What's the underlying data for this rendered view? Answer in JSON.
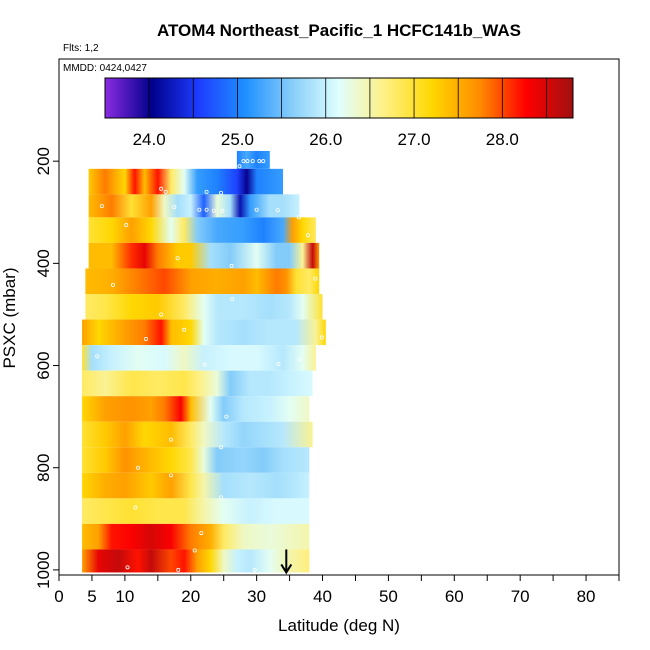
{
  "chart_data": {
    "type": "heatmap",
    "title": "ATOM4 Northeast_Pacific_1 HCFC141b_WAS",
    "flights_label": "Flts: 1,2",
    "dates_label": "MMDD: 0424,0427",
    "xlabel": "Latitude (deg N)",
    "ylabel": "PSXC (mbar)",
    "xlim": [
      0,
      85
    ],
    "ylim": [
      1010,
      0
    ],
    "x_ticks": [
      0,
      10,
      20,
      30,
      40,
      50,
      60,
      70,
      80
    ],
    "x_tick_labels": [
      "0",
      "10",
      "20",
      "30",
      "40",
      "50",
      "60",
      "70",
      "80"
    ],
    "x_extra_tick": {
      "value": 5,
      "label": "5"
    },
    "y_ticks": [
      200,
      400,
      600,
      800,
      1000
    ],
    "y_tick_labels": [
      "200",
      "400",
      "600",
      "800",
      "1000"
    ],
    "colorbar": {
      "min": 23.5,
      "max": 28.8,
      "ticks": [
        24.0,
        25.0,
        26.0,
        27.0,
        28.0
      ],
      "tick_labels": [
        "24.0",
        "25.0",
        "26.0",
        "27.0",
        "28.0"
      ],
      "colors": [
        "#8a2be2",
        "#00008b",
        "#1e3cff",
        "#1e90ff",
        "#87cefa",
        "#e0ffff",
        "#fff080",
        "#ffd700",
        "#ff8c00",
        "#ff0000",
        "#a01010"
      ]
    },
    "bands": [
      {
        "p_top": 180,
        "p_bot": 215,
        "lat_start": 27,
        "lat_end": 32,
        "stops": [
          [
            27,
            25.0
          ],
          [
            28.5,
            25.3
          ],
          [
            30,
            25.0
          ],
          [
            32,
            25.2
          ]
        ]
      },
      {
        "p_top": 215,
        "p_bot": 265,
        "lat_start": 4.5,
        "lat_end": 34,
        "stops": [
          [
            4.5,
            27.3
          ],
          [
            7,
            27.8
          ],
          [
            10,
            27.2
          ],
          [
            11.5,
            28.2
          ],
          [
            13,
            27.4
          ],
          [
            15,
            28.2
          ],
          [
            17,
            26.8
          ],
          [
            19,
            26.2
          ],
          [
            21,
            25.2
          ],
          [
            24,
            25.0
          ],
          [
            27,
            24.6
          ],
          [
            28.5,
            24.0
          ],
          [
            30,
            25.0
          ],
          [
            34,
            25.2
          ]
        ]
      },
      {
        "p_top": 265,
        "p_bot": 310,
        "lat_start": 4.5,
        "lat_end": 36.5,
        "stops": [
          [
            4.5,
            27.4
          ],
          [
            8,
            27.8
          ],
          [
            11,
            27.0
          ],
          [
            14,
            27.6
          ],
          [
            16,
            26.4
          ],
          [
            18,
            25.8
          ],
          [
            20,
            26.0
          ],
          [
            22,
            24.8
          ],
          [
            24,
            26.3
          ],
          [
            26,
            25.8
          ],
          [
            27.5,
            24.2
          ],
          [
            29,
            25.2
          ],
          [
            32,
            25.8
          ],
          [
            34,
            25.8
          ],
          [
            36.5,
            26.0
          ]
        ]
      },
      {
        "p_top": 310,
        "p_bot": 360,
        "lat_start": 4.5,
        "lat_end": 39,
        "stops": [
          [
            4.5,
            27.0
          ],
          [
            8,
            27.2
          ],
          [
            11,
            27.6
          ],
          [
            14,
            27.2
          ],
          [
            17,
            26.2
          ],
          [
            19,
            26.8
          ],
          [
            21,
            25.6
          ],
          [
            24,
            25.3
          ],
          [
            28,
            25.2
          ],
          [
            31,
            25.0
          ],
          [
            34,
            25.3
          ],
          [
            35.5,
            27.6
          ],
          [
            37,
            27.2
          ],
          [
            39,
            26.8
          ]
        ]
      },
      {
        "p_top": 360,
        "p_bot": 410,
        "lat_start": 4.5,
        "lat_end": 39.5,
        "stops": [
          [
            4.5,
            27.4
          ],
          [
            8,
            27.4
          ],
          [
            11,
            28.1
          ],
          [
            13,
            28.4
          ],
          [
            15,
            27.8
          ],
          [
            18,
            27.3
          ],
          [
            20,
            27.3
          ],
          [
            23,
            25.8
          ],
          [
            26,
            25.6
          ],
          [
            30,
            26.2
          ],
          [
            33,
            25.6
          ],
          [
            35,
            25.6
          ],
          [
            37,
            26.6
          ],
          [
            38.5,
            28.6
          ],
          [
            39.5,
            27.6
          ]
        ]
      },
      {
        "p_top": 410,
        "p_bot": 460,
        "lat_start": 4,
        "lat_end": 39.5,
        "stops": [
          [
            4,
            27.4
          ],
          [
            8,
            27.5
          ],
          [
            12,
            27.8
          ],
          [
            16,
            28.0
          ],
          [
            20,
            27.6
          ],
          [
            24,
            27.5
          ],
          [
            28,
            27.6
          ],
          [
            30,
            27.4
          ],
          [
            33,
            27.8
          ],
          [
            34.5,
            27.7
          ],
          [
            36,
            27.0
          ],
          [
            38,
            26.8
          ],
          [
            39.5,
            27.2
          ]
        ]
      },
      {
        "p_top": 460,
        "p_bot": 510,
        "lat_start": 4,
        "lat_end": 40,
        "stops": [
          [
            4,
            26.8
          ],
          [
            7,
            26.9
          ],
          [
            11,
            27.2
          ],
          [
            15,
            27.3
          ],
          [
            19,
            26.8
          ],
          [
            22,
            26.2
          ],
          [
            24,
            25.9
          ],
          [
            28,
            25.9
          ],
          [
            32,
            25.8
          ],
          [
            35,
            25.9
          ],
          [
            37,
            26.2
          ],
          [
            40,
            27.0
          ]
        ]
      },
      {
        "p_top": 510,
        "p_bot": 560,
        "lat_start": 3.5,
        "lat_end": 40.5,
        "stops": [
          [
            3.5,
            27.6
          ],
          [
            6,
            27.2
          ],
          [
            10,
            27.6
          ],
          [
            13,
            27.8
          ],
          [
            15.5,
            28.2
          ],
          [
            17,
            27.4
          ],
          [
            20,
            27.2
          ],
          [
            22,
            26.2
          ],
          [
            24,
            25.9
          ],
          [
            28,
            25.8
          ],
          [
            32,
            25.9
          ],
          [
            36,
            25.9
          ],
          [
            39,
            26.6
          ],
          [
            40.5,
            27.2
          ]
        ]
      },
      {
        "p_top": 560,
        "p_bot": 610,
        "lat_start": 3.5,
        "lat_end": 39,
        "stops": [
          [
            3.5,
            27.0
          ],
          [
            5,
            25.8
          ],
          [
            8,
            26.0
          ],
          [
            12,
            26.2
          ],
          [
            16,
            26.1
          ],
          [
            19,
            26.4
          ],
          [
            22,
            26.0
          ],
          [
            26,
            26.1
          ],
          [
            30,
            26.1
          ],
          [
            34,
            25.9
          ],
          [
            37,
            26.2
          ],
          [
            39,
            26.6
          ]
        ]
      },
      {
        "p_top": 610,
        "p_bot": 660,
        "lat_start": 3.5,
        "lat_end": 38.5,
        "stops": [
          [
            3.5,
            26.8
          ],
          [
            7,
            26.6
          ],
          [
            11,
            26.9
          ],
          [
            15,
            26.8
          ],
          [
            19,
            26.9
          ],
          [
            21,
            26.7
          ],
          [
            24,
            26.3
          ],
          [
            26,
            25.6
          ],
          [
            29,
            25.9
          ],
          [
            32,
            25.9
          ],
          [
            35,
            26.0
          ],
          [
            38.5,
            26.1
          ]
        ]
      },
      {
        "p_top": 660,
        "p_bot": 710,
        "lat_start": 3.5,
        "lat_end": 38,
        "stops": [
          [
            3.5,
            27.2
          ],
          [
            7,
            27.6
          ],
          [
            11,
            27.7
          ],
          [
            14,
            27.6
          ],
          [
            16,
            27.8
          ],
          [
            18.5,
            28.3
          ],
          [
            20,
            27.4
          ],
          [
            23,
            26.2
          ],
          [
            25,
            25.6
          ],
          [
            28,
            25.9
          ],
          [
            32,
            26.0
          ],
          [
            35,
            26.2
          ],
          [
            38,
            26.4
          ]
        ]
      },
      {
        "p_top": 710,
        "p_bot": 760,
        "lat_start": 3.5,
        "lat_end": 38.5,
        "stops": [
          [
            3.5,
            27.0
          ],
          [
            7,
            27.3
          ],
          [
            10,
            27.6
          ],
          [
            13,
            27.2
          ],
          [
            17,
            27.4
          ],
          [
            20,
            26.8
          ],
          [
            22,
            26.4
          ],
          [
            25,
            25.9
          ],
          [
            28,
            25.7
          ],
          [
            31,
            25.8
          ],
          [
            34,
            25.9
          ],
          [
            38.5,
            26.6
          ]
        ]
      },
      {
        "p_top": 760,
        "p_bot": 810,
        "lat_start": 3.5,
        "lat_end": 38,
        "stops": [
          [
            3.5,
            27.0
          ],
          [
            7,
            27.3
          ],
          [
            10,
            27.7
          ],
          [
            14,
            27.4
          ],
          [
            17,
            27.2
          ],
          [
            20,
            26.9
          ],
          [
            22,
            26.3
          ],
          [
            24,
            25.6
          ],
          [
            28,
            25.7
          ],
          [
            31,
            25.6
          ],
          [
            34,
            25.8
          ],
          [
            38,
            25.9
          ]
        ]
      },
      {
        "p_top": 810,
        "p_bot": 860,
        "lat_start": 3.5,
        "lat_end": 38,
        "stops": [
          [
            3.5,
            27.2
          ],
          [
            7,
            27.5
          ],
          [
            10,
            27.6
          ],
          [
            14,
            27.3
          ],
          [
            17,
            27.6
          ],
          [
            20,
            26.9
          ],
          [
            22,
            26.5
          ],
          [
            25,
            25.8
          ],
          [
            29,
            25.9
          ],
          [
            33,
            25.8
          ],
          [
            36,
            25.9
          ],
          [
            38,
            26.0
          ]
        ]
      },
      {
        "p_top": 860,
        "p_bot": 910,
        "lat_start": 3.5,
        "lat_end": 38,
        "stops": [
          [
            3.5,
            26.8
          ],
          [
            7,
            26.9
          ],
          [
            11,
            27.0
          ],
          [
            15,
            26.9
          ],
          [
            19,
            26.9
          ],
          [
            22,
            26.5
          ],
          [
            25,
            26.2
          ],
          [
            29,
            26.0
          ],
          [
            33,
            26.1
          ],
          [
            38,
            26.1
          ]
        ]
      },
      {
        "p_top": 910,
        "p_bot": 960,
        "lat_start": 3.5,
        "lat_end": 38,
        "stops": [
          [
            3.5,
            27.4
          ],
          [
            6,
            27.6
          ],
          [
            8,
            28.2
          ],
          [
            11,
            28.3
          ],
          [
            14,
            28.5
          ],
          [
            17,
            28.3
          ],
          [
            20,
            27.8
          ],
          [
            23,
            27.5
          ],
          [
            25,
            26.8
          ],
          [
            28,
            26.4
          ],
          [
            32,
            26.3
          ],
          [
            35,
            26.4
          ],
          [
            38,
            26.5
          ]
        ]
      },
      {
        "p_top": 960,
        "p_bot": 1005,
        "lat_start": 3.5,
        "lat_end": 38,
        "stops": [
          [
            3.5,
            27.6
          ],
          [
            6,
            28.4
          ],
          [
            9,
            28.6
          ],
          [
            12,
            28.2
          ],
          [
            14,
            28.6
          ],
          [
            17,
            28.0
          ],
          [
            19,
            28.2
          ],
          [
            21,
            27.6
          ],
          [
            23,
            27.2
          ],
          [
            25,
            26.4
          ],
          [
            27,
            26.0
          ],
          [
            29,
            25.9
          ],
          [
            32,
            26.2
          ],
          [
            35,
            26.5
          ],
          [
            38,
            26.7
          ]
        ]
      }
    ],
    "samples": [
      {
        "lat": 28,
        "p": 200
      },
      {
        "lat": 28.6,
        "p": 200
      },
      {
        "lat": 29.4,
        "p": 200
      },
      {
        "lat": 30.4,
        "p": 200
      },
      {
        "lat": 31.0,
        "p": 200
      },
      {
        "lat": 27.4,
        "p": 210
      },
      {
        "lat": 15.5,
        "p": 254
      },
      {
        "lat": 16.2,
        "p": 260
      },
      {
        "lat": 22.4,
        "p": 260
      },
      {
        "lat": 24.6,
        "p": 262
      },
      {
        "lat": 6.5,
        "p": 288
      },
      {
        "lat": 17.5,
        "p": 290
      },
      {
        "lat": 21.3,
        "p": 295
      },
      {
        "lat": 22.4,
        "p": 295
      },
      {
        "lat": 23.5,
        "p": 297
      },
      {
        "lat": 24.8,
        "p": 297
      },
      {
        "lat": 30.0,
        "p": 295
      },
      {
        "lat": 33.2,
        "p": 296
      },
      {
        "lat": 36.4,
        "p": 310
      },
      {
        "lat": 10.2,
        "p": 325
      },
      {
        "lat": 37.8,
        "p": 345
      },
      {
        "lat": 18.0,
        "p": 390
      },
      {
        "lat": 26.2,
        "p": 405
      },
      {
        "lat": 8.2,
        "p": 442
      },
      {
        "lat": 26.3,
        "p": 470
      },
      {
        "lat": 38.9,
        "p": 430
      },
      {
        "lat": 15.5,
        "p": 500
      },
      {
        "lat": 19.0,
        "p": 530
      },
      {
        "lat": 13.2,
        "p": 548
      },
      {
        "lat": 39.9,
        "p": 545
      },
      {
        "lat": 5.8,
        "p": 582
      },
      {
        "lat": 22.1,
        "p": 598
      },
      {
        "lat": 33.3,
        "p": 597
      },
      {
        "lat": 36.5,
        "p": 588
      },
      {
        "lat": 38.8,
        "p": 660
      },
      {
        "lat": 25.4,
        "p": 700
      },
      {
        "lat": 17.0,
        "p": 745
      },
      {
        "lat": 24.6,
        "p": 760
      },
      {
        "lat": 12.0,
        "p": 800
      },
      {
        "lat": 17.0,
        "p": 815
      },
      {
        "lat": 24.6,
        "p": 858
      },
      {
        "lat": 11.6,
        "p": 878
      },
      {
        "lat": 21.6,
        "p": 928
      },
      {
        "lat": 20.6,
        "p": 962
      },
      {
        "lat": 18.1,
        "p": 1000
      },
      {
        "lat": 29.7,
        "p": 1000
      },
      {
        "lat": 10.4,
        "p": 995
      }
    ],
    "arrow": {
      "lat": 34.5,
      "p_from": 960,
      "p_to": 1005
    }
  }
}
